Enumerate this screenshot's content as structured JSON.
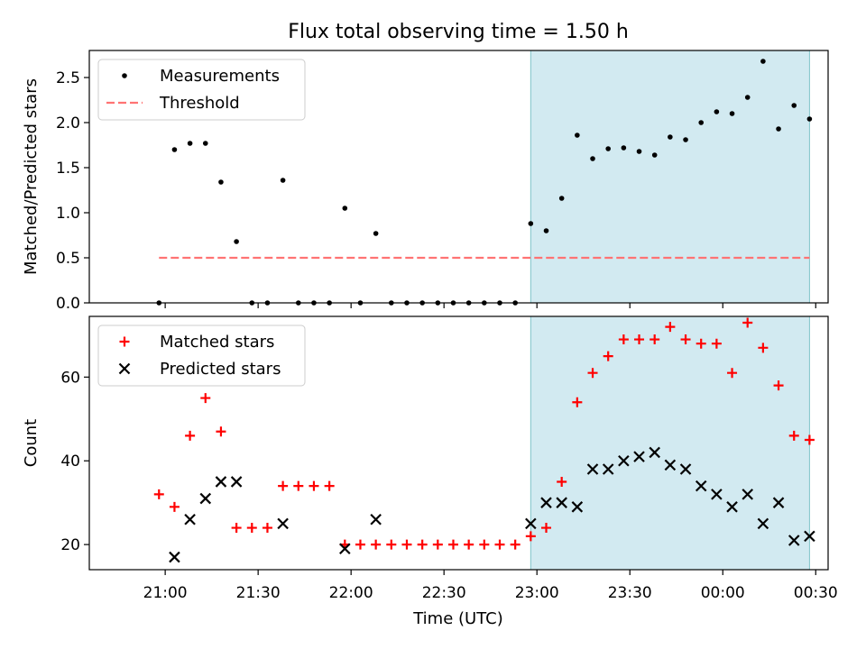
{
  "figure": {
    "title": "Flux total observing time = 1.50 h",
    "xlabel": "Time (UTC)",
    "xtick_labels": [
      "21:00",
      "21:30",
      "22:00",
      "22:30",
      "23:00",
      "23:30",
      "00:00",
      "00:30"
    ],
    "xtick_minutes": [
      0,
      30,
      60,
      90,
      120,
      150,
      180,
      210
    ],
    "highlight_span_minutes": [
      118,
      208
    ],
    "highlight_color": "#add8e6"
  },
  "chart_data": [
    {
      "type": "scatter",
      "panel": "top",
      "ylabel": "Matched/Predicted stars",
      "ylim": [
        0,
        2.8
      ],
      "yticks": [
        0.0,
        0.5,
        1.0,
        1.5,
        2.0,
        2.5
      ],
      "ytick_labels": [
        "0.0",
        "0.5",
        "1.0",
        "1.5",
        "2.0",
        "2.5"
      ],
      "legend": {
        "placement": "upper-left",
        "entries": [
          "Measurements",
          "Threshold"
        ]
      },
      "series": [
        {
          "name": "Measurements",
          "marker": "dot",
          "color": "#000000",
          "x": [
            -2,
            3,
            8,
            13,
            18,
            23,
            28,
            33,
            38,
            43,
            48,
            53,
            58,
            63,
            68,
            73,
            78,
            83,
            88,
            93,
            98,
            103,
            108,
            113,
            118,
            123,
            128,
            133,
            138,
            143,
            148,
            153,
            158,
            163,
            168,
            173,
            178,
            183,
            188,
            193,
            198,
            203,
            208
          ],
          "y": [
            0.0,
            1.7,
            1.77,
            1.77,
            1.34,
            0.68,
            0.0,
            0.0,
            1.36,
            0.0,
            0.0,
            0.0,
            1.05,
            0.0,
            0.77,
            0.0,
            0.0,
            0.0,
            0.0,
            0.0,
            0.0,
            0.0,
            0.0,
            0.0,
            0.88,
            0.8,
            1.16,
            1.86,
            1.6,
            1.71,
            1.72,
            1.68,
            1.64,
            1.84,
            1.81,
            2.0,
            2.12,
            2.1,
            2.28,
            2.68,
            1.93,
            2.19,
            2.04
          ]
        },
        {
          "name": "Threshold",
          "line_style": "dashed",
          "color": "#ff7373",
          "x": [
            -2,
            208
          ],
          "y": [
            0.5,
            0.5
          ]
        }
      ]
    },
    {
      "type": "scatter",
      "panel": "bottom",
      "ylabel": "Count",
      "ylim": [
        14,
        74.5
      ],
      "yticks": [
        20,
        40,
        60
      ],
      "ytick_labels": [
        "20",
        "40",
        "60"
      ],
      "legend": {
        "placement": "upper-left",
        "entries": [
          "Matched stars",
          "Predicted stars"
        ]
      },
      "series": [
        {
          "name": "Matched stars",
          "marker": "plus",
          "color": "#ff0000",
          "x": [
            -2,
            3,
            8,
            13,
            18,
            23,
            28,
            33,
            38,
            43,
            48,
            53,
            58,
            63,
            68,
            73,
            78,
            83,
            88,
            93,
            98,
            103,
            108,
            113,
            118,
            123,
            128,
            133,
            138,
            143,
            148,
            153,
            158,
            163,
            168,
            173,
            178,
            183,
            188,
            193,
            198,
            203,
            208
          ],
          "y": [
            32,
            29,
            46,
            55,
            47,
            24,
            24,
            24,
            34,
            34,
            34,
            34,
            20,
            20,
            20,
            20,
            20,
            20,
            20,
            20,
            20,
            20,
            20,
            20,
            22,
            24,
            35,
            54,
            61,
            65,
            69,
            69,
            69,
            72,
            69,
            68,
            68,
            61,
            73,
            67,
            58,
            46,
            45
          ]
        },
        {
          "name": "Predicted stars",
          "marker": "x",
          "color": "#000000",
          "x": [
            3,
            8,
            13,
            18,
            23,
            38,
            58,
            68,
            118,
            123,
            128,
            133,
            138,
            143,
            148,
            153,
            158,
            163,
            168,
            173,
            178,
            183,
            188,
            193,
            198,
            203,
            208
          ],
          "y": [
            17,
            26,
            31,
            35,
            35,
            25,
            19,
            26,
            25,
            30,
            30,
            29,
            38,
            38,
            40,
            41,
            42,
            39,
            38,
            34,
            32,
            29,
            32,
            25,
            30,
            21,
            22
          ]
        }
      ]
    }
  ]
}
